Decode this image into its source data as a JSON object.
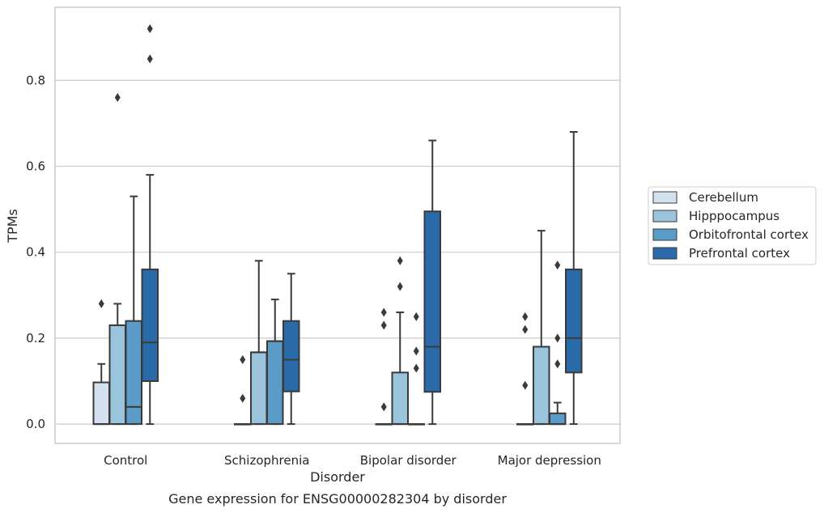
{
  "chart_data": {
    "type": "box",
    "caption": "Gene expression for ENSG00000282304 by disorder",
    "xlabel": "Disorder",
    "ylabel": "TPMs",
    "ylim": [
      -0.045,
      0.97
    ],
    "yticks": [
      0.0,
      0.2,
      0.4,
      0.6,
      0.8
    ],
    "ytick_labels": [
      "0.0",
      "0.2",
      "0.4",
      "0.6",
      "0.8"
    ],
    "grid": "horizontal",
    "legend_position": "right",
    "categories": [
      "Control",
      "Schizophrenia",
      "Bipolar disorder",
      "Major depression"
    ],
    "series": [
      {
        "name": "Cerebellum",
        "color": "#d4e2f0",
        "boxes": [
          {
            "q1": 0.0,
            "median": 0.0,
            "q3": 0.097,
            "whisker_low": 0.0,
            "whisker_high": 0.14,
            "outliers": [
              0.28
            ]
          },
          {
            "q1": 0.0,
            "median": 0.0,
            "q3": 0.0,
            "whisker_low": 0.0,
            "whisker_high": 0.0,
            "outliers": [
              0.15,
              0.06
            ]
          },
          {
            "q1": 0.0,
            "median": 0.0,
            "q3": 0.0,
            "whisker_low": 0.0,
            "whisker_high": 0.0,
            "outliers": [
              0.26,
              0.23,
              0.04
            ]
          },
          {
            "q1": 0.0,
            "median": 0.0,
            "q3": 0.0,
            "whisker_low": 0.0,
            "whisker_high": 0.0,
            "outliers": [
              0.25,
              0.22,
              0.09
            ]
          }
        ]
      },
      {
        "name": "Hipppocampus",
        "color": "#9ac3dc",
        "boxes": [
          {
            "q1": 0.0,
            "median": 0.23,
            "q3": 0.23,
            "whisker_low": 0.0,
            "whisker_high": 0.28,
            "outliers": [
              0.76
            ]
          },
          {
            "q1": 0.0,
            "median": 0.167,
            "q3": 0.167,
            "whisker_low": 0.0,
            "whisker_high": 0.38,
            "outliers": []
          },
          {
            "q1": 0.0,
            "median": 0.0,
            "q3": 0.12,
            "whisker_low": 0.0,
            "whisker_high": 0.26,
            "outliers": [
              0.38,
              0.32
            ]
          },
          {
            "q1": 0.0,
            "median": 0.18,
            "q3": 0.18,
            "whisker_low": 0.0,
            "whisker_high": 0.45,
            "outliers": []
          }
        ]
      },
      {
        "name": "Orbitofrontal cortex",
        "color": "#5b9bc8",
        "boxes": [
          {
            "q1": 0.0,
            "median": 0.04,
            "q3": 0.24,
            "whisker_low": 0.0,
            "whisker_high": 0.53,
            "outliers": []
          },
          {
            "q1": 0.0,
            "median": 0.193,
            "q3": 0.193,
            "whisker_low": 0.0,
            "whisker_high": 0.29,
            "outliers": []
          },
          {
            "q1": 0.0,
            "median": 0.0,
            "q3": 0.0,
            "whisker_low": 0.0,
            "whisker_high": 0.0,
            "outliers": [
              0.25,
              0.17,
              0.13
            ]
          },
          {
            "q1": 0.0,
            "median": 0.0,
            "q3": 0.025,
            "whisker_low": 0.0,
            "whisker_high": 0.05,
            "outliers": [
              0.37,
              0.2,
              0.14
            ]
          }
        ]
      },
      {
        "name": "Prefrontal cortex",
        "color": "#2b6aa9",
        "boxes": [
          {
            "q1": 0.1,
            "median": 0.19,
            "q3": 0.36,
            "whisker_low": 0.0,
            "whisker_high": 0.58,
            "outliers": [
              0.92,
              0.85
            ]
          },
          {
            "q1": 0.076,
            "median": 0.15,
            "q3": 0.24,
            "whisker_low": 0.0,
            "whisker_high": 0.35,
            "outliers": []
          },
          {
            "q1": 0.075,
            "median": 0.18,
            "q3": 0.495,
            "whisker_low": 0.0,
            "whisker_high": 0.66,
            "outliers": []
          },
          {
            "q1": 0.12,
            "median": 0.2,
            "q3": 0.36,
            "whisker_low": 0.0,
            "whisker_high": 0.68,
            "outliers": []
          }
        ]
      }
    ]
  }
}
